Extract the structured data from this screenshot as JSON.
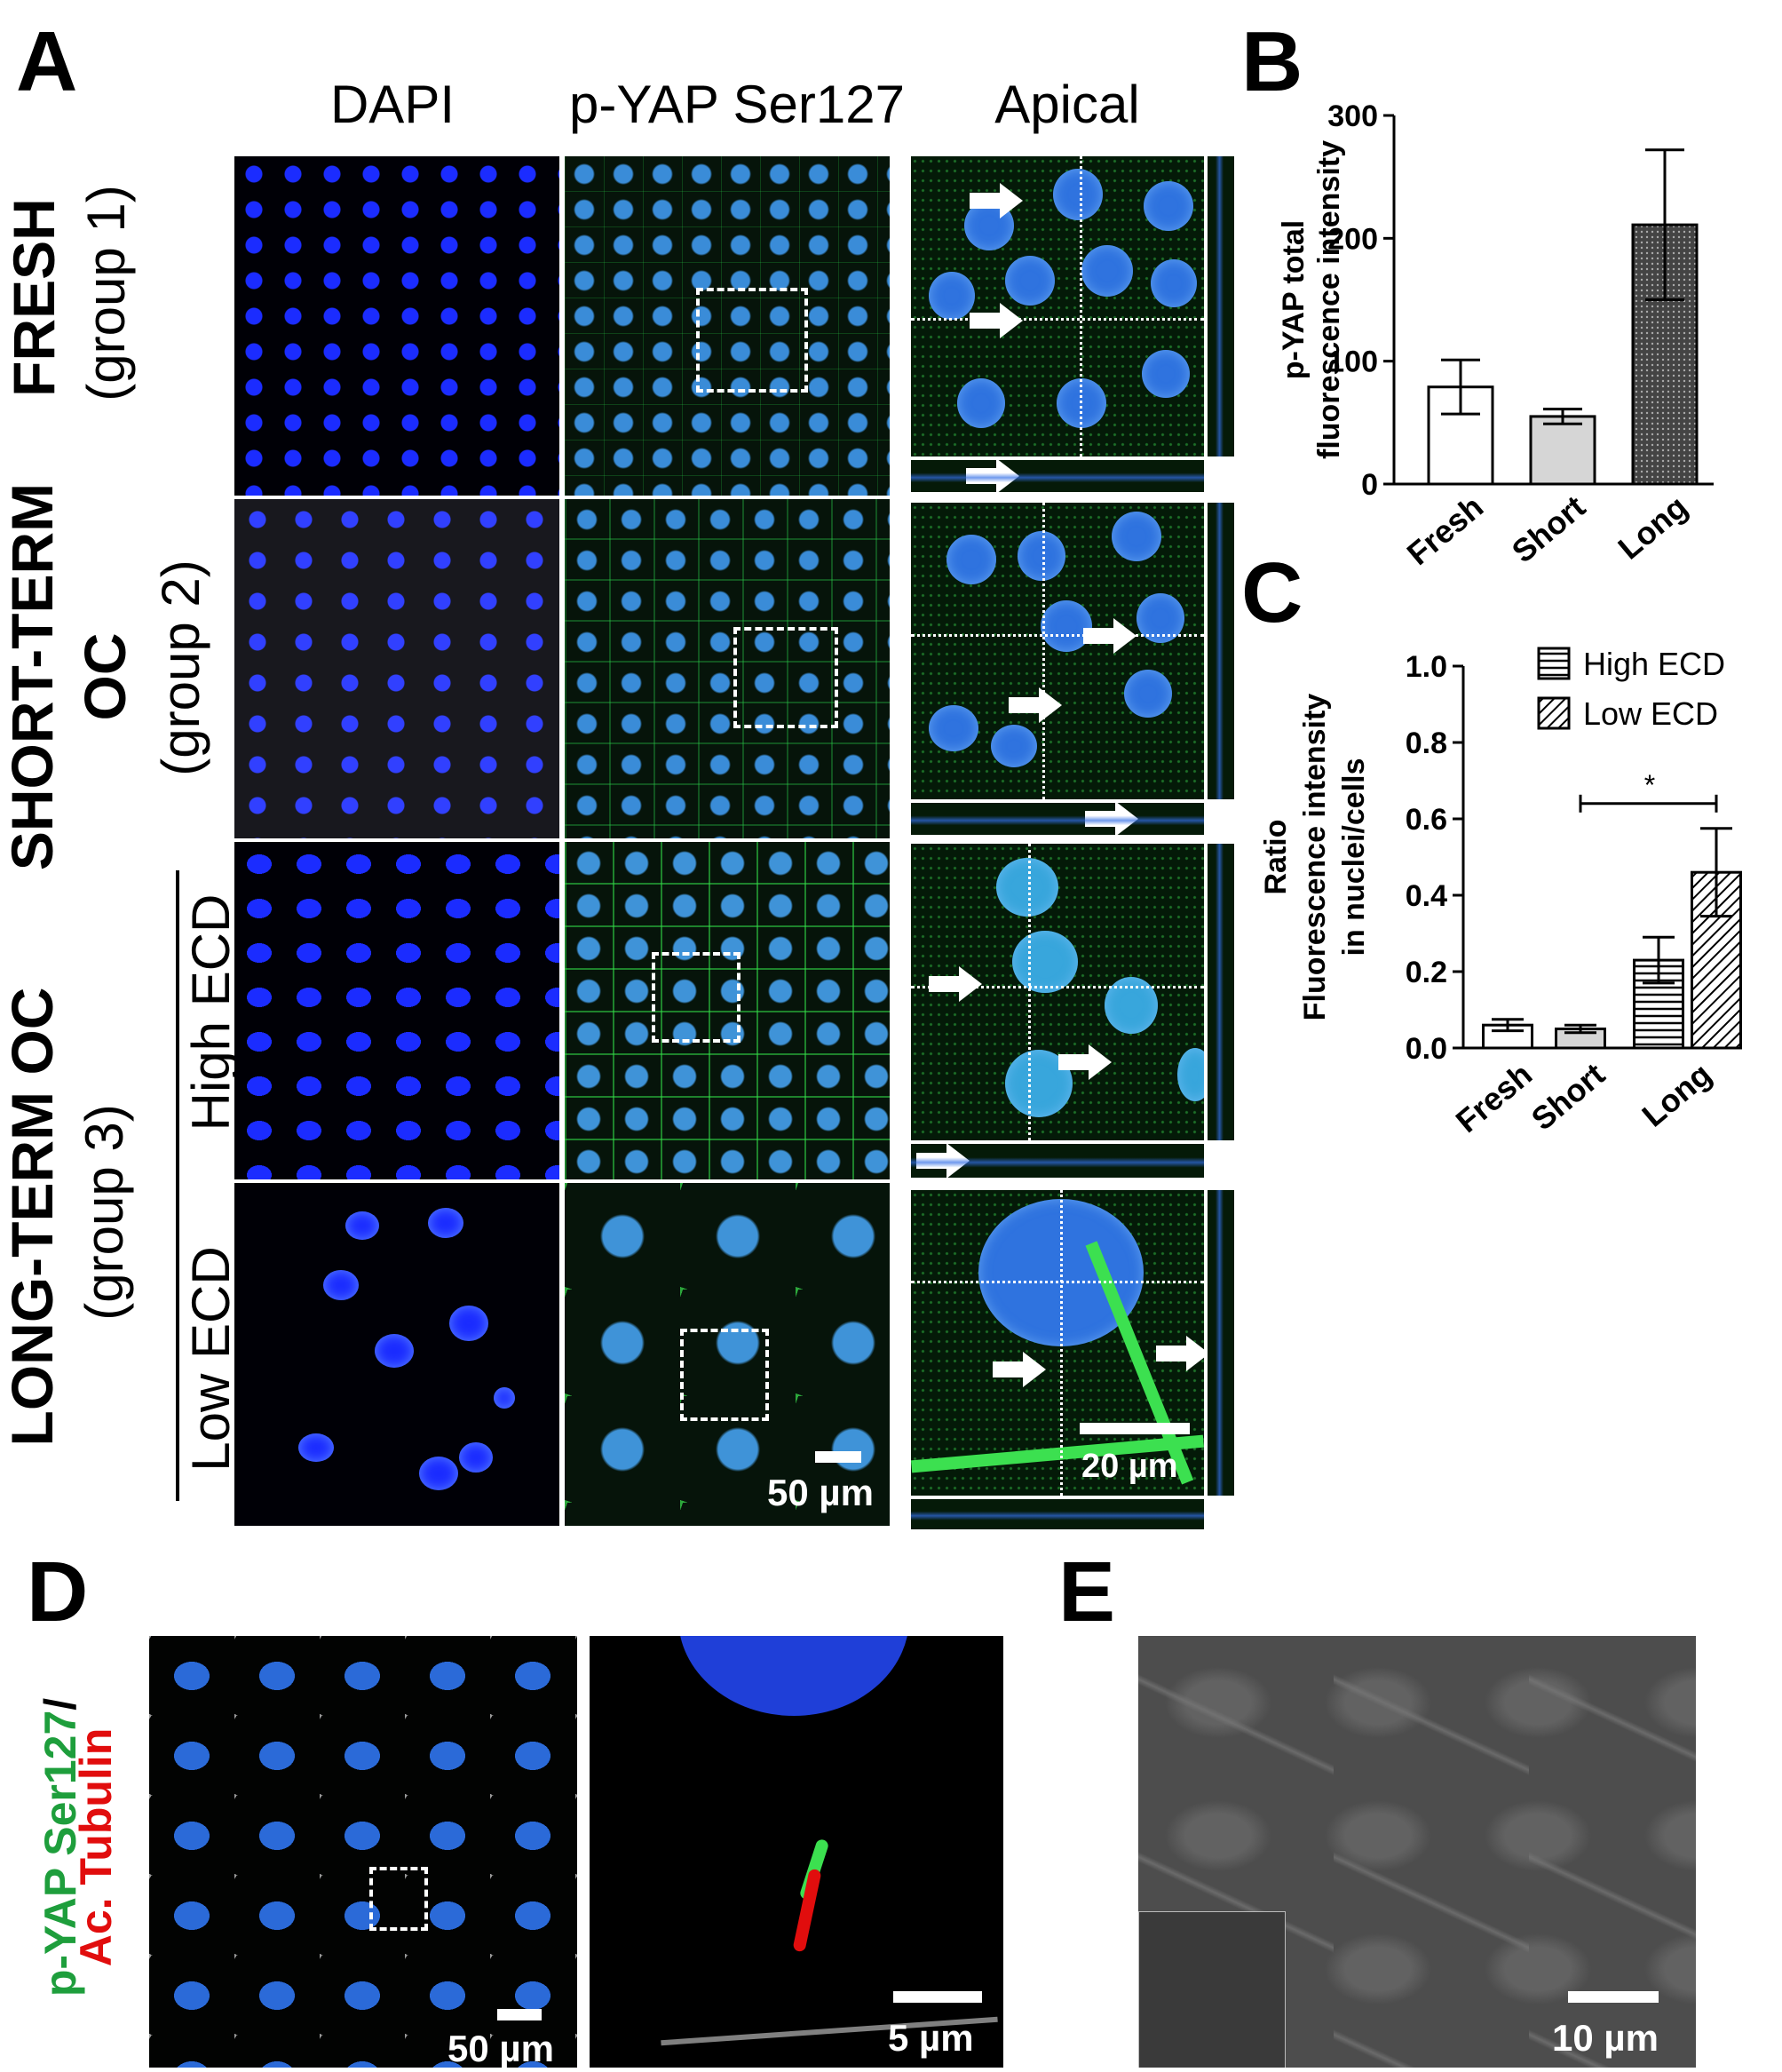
{
  "panels": {
    "a": {
      "label": "A",
      "columns": [
        "DAPI",
        "p-YAP Ser127",
        "Apical"
      ],
      "rows": {
        "fresh": {
          "title": "FRESH",
          "group": "(group 1)"
        },
        "short": {
          "title": "SHORT-TERM",
          "title2": "OC",
          "group": "(group 2)"
        },
        "long": {
          "title": "LONG-TERM OC",
          "group": "(group 3)",
          "sub_high": "High ECD",
          "sub_low": "Low ECD"
        }
      },
      "scalebar_50": "50 µm",
      "scalebar_20": "20 µm"
    },
    "b": {
      "label": "B"
    },
    "c": {
      "label": "C"
    },
    "d": {
      "label": "D",
      "side_green": "p-YAP Ser127",
      "side_slash": "/",
      "side_red": "Ac. Tubulin",
      "scalebar_left": "50 µm",
      "scalebar_right": "5 µm"
    },
    "e": {
      "label": "E",
      "scalebar": "10 µm"
    }
  },
  "colors": {
    "dapi": "#1b2cff",
    "green": "#3cdc50",
    "red": "#e10d0d",
    "green_label": "#1e9e3c"
  },
  "chart_data": [
    {
      "type": "bar",
      "panel": "B",
      "categories": [
        "Fresh",
        "Short",
        "Long"
      ],
      "values": [
        79,
        55,
        211
      ],
      "errors": [
        22,
        6,
        61
      ],
      "ylabel_line1": "p-YAP total",
      "ylabel_line2": "fluorescence intensity",
      "ylim": [
        0,
        300
      ],
      "yticks": [
        "0",
        "100",
        "200",
        "300"
      ],
      "fills": [
        "white",
        "lightgray",
        "dotted-dark"
      ]
    },
    {
      "type": "bar",
      "panel": "C",
      "categories": [
        "Fresh",
        "Short",
        "Long"
      ],
      "series": [
        {
          "name": "High ECD",
          "values": [
            0.06,
            0.05,
            0.23
          ],
          "errors": [
            0.015,
            0.01,
            0.06
          ]
        },
        {
          "name": "Low ECD",
          "values": [
            null,
            null,
            0.46
          ],
          "errors": [
            null,
            null,
            0.115
          ]
        }
      ],
      "ylabel_line1": "Ratio",
      "ylabel_line2": "Fluorescence intensity",
      "ylabel_line3": "in nuclei/cells",
      "ylim": [
        0,
        1.0
      ],
      "yticks": [
        "0.0",
        "0.2",
        "0.4",
        "0.6",
        "0.8",
        "1.0"
      ],
      "significance": "*",
      "legend_placement": "top-right"
    }
  ]
}
